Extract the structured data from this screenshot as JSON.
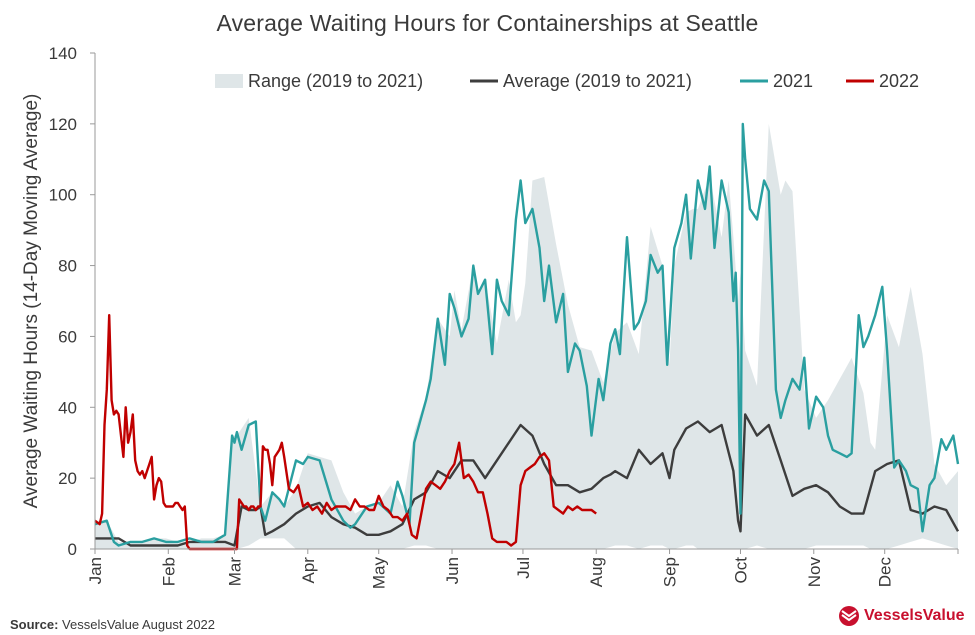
{
  "title": "Average Waiting Hours for Containerships at Seattle",
  "source": {
    "label": "Source:",
    "text": "VesselsValue August 2022"
  },
  "logo": {
    "text": "VesselsValue",
    "color": "#c8102e"
  },
  "colors": {
    "range": "#dfe6e8",
    "average": "#3d3d3d",
    "y2021": "#2a9fa0",
    "y2022": "#c00000",
    "axis": "#9a9a9a",
    "text": "#3a3a3a"
  },
  "chart_data": {
    "type": "line",
    "title": "Average Waiting Hours for Containerships at Seattle",
    "xlabel": "",
    "ylabel": "Average Waiting Hours (14-Day Moving Average)",
    "ylim": [
      0,
      140
    ],
    "yticks": [
      0,
      20,
      40,
      60,
      80,
      100,
      120,
      140
    ],
    "xlim": [
      0,
      365
    ],
    "xticks": [
      {
        "label": "Jan",
        "x": 0
      },
      {
        "label": "Feb",
        "x": 31
      },
      {
        "label": "Mar",
        "x": 59
      },
      {
        "label": "Apr",
        "x": 90
      },
      {
        "label": "May",
        "x": 120
      },
      {
        "label": "Jun",
        "x": 151
      },
      {
        "label": "Jul",
        "x": 181
      },
      {
        "label": "Aug",
        "x": 212
      },
      {
        "label": "Sep",
        "x": 243
      },
      {
        "label": "Oct",
        "x": 273
      },
      {
        "label": "Nov",
        "x": 304
      },
      {
        "label": "Dec",
        "x": 334
      }
    ],
    "legend": {
      "placement": "top-right"
    },
    "grid": false,
    "x_unit": "day of year",
    "series": [
      {
        "name": "Range (2019 to 2021)",
        "style": "area",
        "x": [
          0,
          5,
          10,
          15,
          20,
          25,
          30,
          35,
          40,
          45,
          50,
          55,
          58,
          60,
          65,
          70,
          75,
          80,
          85,
          90,
          95,
          100,
          105,
          110,
          115,
          120,
          125,
          130,
          135,
          140,
          145,
          150,
          152,
          155,
          160,
          162,
          165,
          170,
          175,
          178,
          180,
          182,
          185,
          190,
          195,
          200,
          205,
          210,
          215,
          220,
          225,
          230,
          235,
          240,
          243,
          245,
          250,
          253,
          255,
          260,
          265,
          268,
          270,
          272,
          273,
          275,
          280,
          285,
          290,
          292,
          295,
          300,
          305,
          310,
          315,
          320,
          325,
          328,
          330,
          335,
          340,
          345,
          350,
          355,
          360,
          365
        ],
        "low": [
          0,
          0,
          0,
          0,
          0,
          0,
          0,
          0,
          0,
          0,
          0,
          0,
          0,
          0,
          1,
          3,
          3,
          3,
          0,
          0,
          0,
          0,
          0,
          0,
          0,
          0,
          0,
          0,
          1,
          1,
          0,
          0,
          0,
          0,
          0,
          0,
          0,
          0,
          0,
          0,
          0,
          0,
          0,
          0,
          0,
          0,
          0,
          0,
          0,
          1,
          1,
          0,
          1,
          1,
          0,
          0,
          1,
          1,
          0,
          0,
          0,
          0,
          0,
          0,
          0,
          0,
          1,
          0,
          0,
          0,
          0,
          0,
          1,
          1,
          1,
          1,
          1,
          0,
          0,
          0,
          1,
          2,
          3,
          2,
          1,
          0
        ],
        "high": [
          8,
          8,
          2,
          2,
          2,
          3,
          3,
          2,
          2,
          3,
          3,
          4,
          32,
          32,
          37,
          12,
          16,
          12,
          17,
          27,
          26,
          25,
          16,
          10,
          12,
          13,
          18,
          12,
          33,
          43,
          65,
          60,
          73,
          62,
          80,
          72,
          76,
          58,
          76,
          64,
          66,
          75,
          104,
          105,
          86,
          69,
          57,
          56,
          47,
          61,
          64,
          55,
          91,
          80,
          52,
          80,
          95,
          96,
          96,
          105,
          88,
          104,
          88,
          70,
          78,
          56,
          46,
          120,
          100,
          104,
          101,
          45,
          37,
          42,
          48,
          54,
          44,
          30,
          28,
          66,
          57,
          74,
          55,
          24,
          18,
          22
        ]
      },
      {
        "name": "Average (2019 to 2021)",
        "style": "line",
        "x": [
          0,
          10,
          15,
          20,
          25,
          30,
          35,
          40,
          45,
          50,
          55,
          59,
          62,
          65,
          68,
          70,
          72,
          75,
          80,
          85,
          90,
          95,
          100,
          105,
          110,
          115,
          120,
          125,
          130,
          135,
          140,
          145,
          150,
          155,
          160,
          165,
          170,
          175,
          180,
          185,
          190,
          195,
          200,
          205,
          210,
          215,
          218,
          220,
          225,
          230,
          235,
          240,
          243,
          245,
          250,
          255,
          260,
          265,
          270,
          272,
          273,
          275,
          280,
          285,
          290,
          295,
          300,
          305,
          310,
          315,
          320,
          325,
          330,
          335,
          340,
          345,
          350,
          355,
          360,
          365
        ],
        "values": [
          3,
          3,
          1,
          1,
          1,
          1,
          1,
          2,
          2,
          2,
          2,
          1,
          12,
          11,
          11,
          12,
          4,
          5,
          7,
          10,
          12,
          13,
          9,
          7,
          6,
          4,
          4,
          5,
          7,
          14,
          16,
          22,
          20,
          25,
          25,
          20,
          25,
          30,
          35,
          32,
          24,
          18,
          18,
          16,
          17,
          20,
          21,
          22,
          20,
          28,
          24,
          27,
          20,
          28,
          34,
          36,
          33,
          35,
          22,
          8,
          5,
          38,
          32,
          35,
          25,
          15,
          17,
          18,
          16,
          12,
          10,
          10,
          22,
          24,
          25,
          11,
          10,
          12,
          11,
          5
        ]
      },
      {
        "name": "2021",
        "style": "line",
        "x": [
          0,
          5,
          8,
          10,
          15,
          20,
          25,
          30,
          35,
          40,
          45,
          50,
          55,
          58,
          59,
          60,
          62,
          65,
          68,
          70,
          72,
          75,
          78,
          80,
          85,
          88,
          90,
          95,
          100,
          105,
          108,
          110,
          115,
          120,
          125,
          128,
          130,
          133,
          135,
          140,
          142,
          145,
          148,
          150,
          152,
          155,
          158,
          160,
          162,
          165,
          168,
          170,
          172,
          175,
          178,
          180,
          182,
          185,
          188,
          190,
          192,
          195,
          198,
          200,
          203,
          205,
          208,
          210,
          213,
          215,
          218,
          220,
          222,
          225,
          228,
          230,
          233,
          235,
          238,
          240,
          242,
          245,
          248,
          250,
          252,
          255,
          258,
          260,
          262,
          265,
          268,
          270,
          271,
          272,
          273,
          274,
          275,
          277,
          280,
          283,
          285,
          288,
          290,
          292,
          295,
          298,
          300,
          302,
          305,
          308,
          310,
          312,
          315,
          318,
          320,
          323,
          325,
          327,
          330,
          333,
          335,
          338,
          340,
          343,
          345,
          348,
          350,
          353,
          355,
          358,
          360,
          363,
          365
        ],
        "values": [
          7,
          8,
          2,
          1,
          2,
          2,
          3,
          2,
          2,
          3,
          2,
          2,
          4,
          32,
          30,
          33,
          28,
          35,
          36,
          12,
          8,
          16,
          14,
          12,
          25,
          24,
          26,
          25,
          14,
          8,
          6,
          7,
          12,
          13,
          10,
          19,
          15,
          7,
          30,
          42,
          48,
          65,
          52,
          72,
          68,
          60,
          65,
          80,
          72,
          76,
          55,
          76,
          70,
          66,
          93,
          104,
          92,
          96,
          85,
          70,
          80,
          64,
          72,
          50,
          58,
          56,
          46,
          32,
          48,
          42,
          58,
          62,
          55,
          88,
          62,
          64,
          70,
          83,
          78,
          80,
          52,
          85,
          92,
          100,
          82,
          104,
          96,
          108,
          85,
          104,
          95,
          70,
          78,
          56,
          10,
          120,
          110,
          96,
          93,
          104,
          101,
          45,
          37,
          42,
          48,
          45,
          54,
          34,
          43,
          40,
          32,
          28,
          27,
          26,
          27,
          66,
          57,
          60,
          66,
          74,
          56,
          23,
          25,
          22,
          18,
          17,
          5,
          18,
          20,
          31,
          28,
          32,
          24
        ]
      },
      {
        "name": "2022",
        "style": "line",
        "x": [
          0,
          2,
          3,
          4,
          5,
          6,
          7,
          8,
          9,
          10,
          12,
          13,
          14,
          15,
          16,
          17,
          18,
          19,
          20,
          21,
          22,
          23,
          24,
          25,
          26,
          27,
          28,
          29,
          30,
          31,
          32,
          33,
          34,
          35,
          36,
          37,
          38,
          39,
          40,
          41,
          42,
          43,
          44,
          45,
          46,
          47,
          48,
          49,
          50,
          51,
          52,
          53,
          54,
          55,
          56,
          57,
          58,
          59,
          60,
          61,
          62,
          63,
          64,
          65,
          66,
          67,
          68,
          69,
          70,
          71,
          72,
          73,
          74,
          75,
          76,
          77,
          78,
          79,
          80,
          82,
          84,
          86,
          88,
          90,
          92,
          94,
          96,
          98,
          100,
          102,
          104,
          106,
          108,
          110,
          112,
          114,
          116,
          118,
          120,
          122,
          124,
          126,
          128,
          130,
          132,
          134,
          136,
          138,
          140,
          142,
          144,
          146,
          148,
          150,
          152,
          154,
          156,
          158,
          160,
          162,
          164,
          166,
          168,
          170,
          172,
          174,
          176,
          178,
          180,
          182,
          184,
          186,
          188,
          190,
          192,
          194,
          196,
          198,
          200,
          202,
          204,
          206,
          208,
          210,
          212
        ],
        "values": [
          8,
          7,
          10,
          35,
          45,
          66,
          42,
          38,
          39,
          38,
          26,
          40,
          30,
          33,
          38,
          25,
          22,
          21,
          22,
          20,
          22,
          24,
          26,
          14,
          18,
          20,
          19,
          13,
          12,
          12,
          12,
          12,
          13,
          13,
          12,
          11,
          12,
          1,
          0,
          0,
          0,
          0,
          0,
          0,
          0,
          0,
          0,
          0,
          0,
          0,
          0,
          0,
          0,
          0,
          0,
          0,
          0,
          0,
          0,
          14,
          13,
          12,
          12,
          11,
          12,
          12,
          11,
          12,
          12,
          29,
          28,
          28,
          24,
          18,
          26,
          27,
          28,
          30,
          26,
          17,
          16,
          18,
          12,
          13,
          11,
          12,
          10,
          13,
          11,
          12,
          12,
          12,
          11,
          14,
          12,
          12,
          11,
          11,
          15,
          12,
          11,
          9,
          9,
          8,
          10,
          4,
          3,
          10,
          17,
          19,
          18,
          17,
          19,
          22,
          24,
          30,
          20,
          21,
          19,
          16,
          16,
          10,
          3,
          2,
          2,
          2,
          1,
          2,
          18,
          22,
          23,
          24,
          26,
          27,
          25,
          12,
          11,
          10,
          12,
          11,
          12,
          11,
          11,
          11,
          10
        ]
      }
    ]
  }
}
